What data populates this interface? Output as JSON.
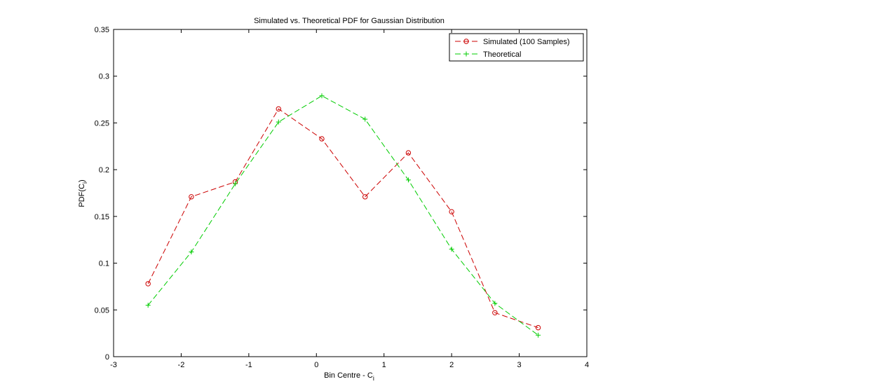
{
  "chart_data": {
    "type": "line",
    "title": "Simulated vs. Theoretical PDF for Gaussian Distribution",
    "xlabel": "Bin Centre - C",
    "xlabel_subscript": "i",
    "ylabel": "PDF(C",
    "ylabel_subscript": "i",
    "ylabel_suffix": ")",
    "xlim": [
      -3,
      4
    ],
    "ylim": [
      0,
      0.35
    ],
    "x_ticks": [
      -3,
      -2,
      -1,
      0,
      1,
      2,
      3,
      4
    ],
    "y_ticks": [
      0,
      0.05,
      0.1,
      0.15,
      0.2,
      0.25,
      0.3,
      0.35
    ],
    "x_tick_labels": [
      "-3",
      "-2",
      "-1",
      "0",
      "1",
      "2",
      "3",
      "4"
    ],
    "y_tick_labels": [
      "0",
      "0.05",
      "0.1",
      "0.15",
      "0.2",
      "0.25",
      "0.3",
      "0.35"
    ],
    "grid": false,
    "legend_position": "top-right",
    "series": [
      {
        "name": "Simulated (100 Samples)",
        "color": "#cc0000",
        "marker": "circle",
        "line_style": "dashed",
        "x": [
          -2.49,
          -1.85,
          -1.2,
          -0.56,
          0.08,
          0.72,
          1.36,
          2.0,
          2.64,
          3.28
        ],
        "y": [
          0.078,
          0.171,
          0.187,
          0.265,
          0.233,
          0.171,
          0.218,
          0.155,
          0.047,
          0.031
        ]
      },
      {
        "name": "Theoretical",
        "color": "#00cc00",
        "marker": "plus",
        "line_style": "dashed",
        "x": [
          -2.49,
          -1.85,
          -1.2,
          -0.56,
          0.08,
          0.72,
          1.36,
          2.0,
          2.64,
          3.28
        ],
        "y": [
          0.055,
          0.112,
          0.185,
          0.251,
          0.279,
          0.254,
          0.189,
          0.115,
          0.057,
          0.023
        ]
      }
    ]
  }
}
